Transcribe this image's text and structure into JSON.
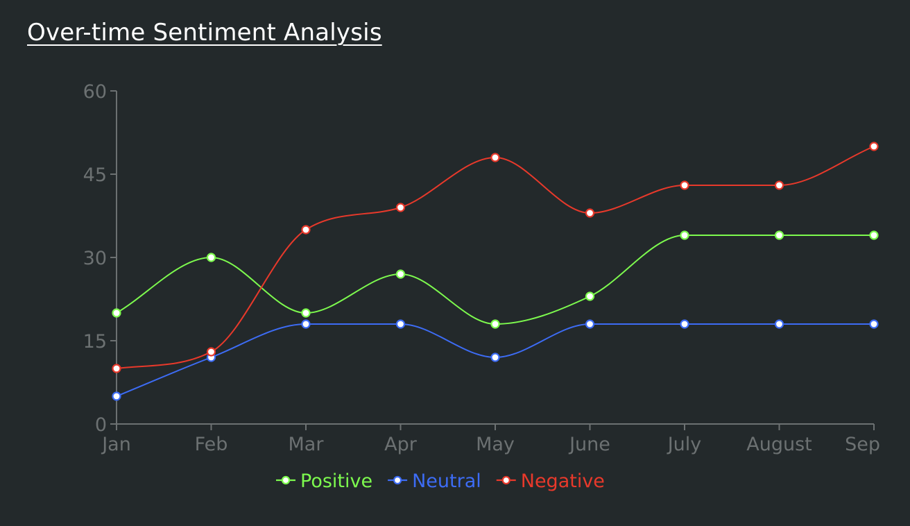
{
  "title": "Over-time Sentiment Analysis",
  "chart_data": {
    "type": "line",
    "title": "Over-time Sentiment Analysis",
    "categories": [
      "Jan",
      "Feb",
      "Mar",
      "Apr",
      "May",
      "June",
      "July",
      "August",
      "Sep"
    ],
    "series": [
      {
        "name": "Positive",
        "color": "#7dfa4e",
        "values": [
          20,
          30,
          20,
          27,
          18,
          23,
          34,
          34,
          34
        ]
      },
      {
        "name": "Neutral",
        "color": "#3d6cf5",
        "values": [
          5,
          12,
          18,
          18,
          12,
          18,
          18,
          18,
          18
        ]
      },
      {
        "name": "Negative",
        "color": "#e8392b",
        "values": [
          10,
          13,
          35,
          39,
          48,
          38,
          43,
          43,
          50
        ]
      }
    ],
    "ylim": [
      0,
      60
    ],
    "yticks": [
      "0",
      "15",
      "30",
      "45",
      "60"
    ],
    "grid": false,
    "legend_position": "bottom-center",
    "curve": "smooth"
  }
}
